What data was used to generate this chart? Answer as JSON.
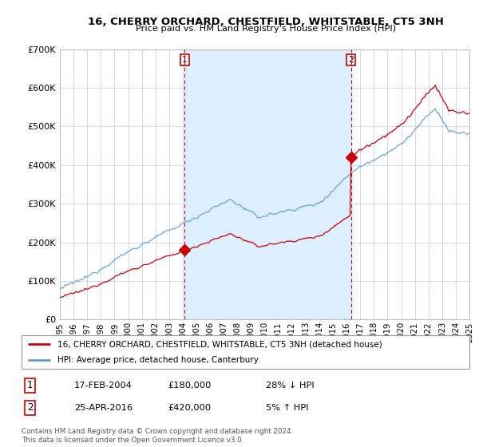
{
  "title": "16, CHERRY ORCHARD, CHESTFIELD, WHITSTABLE, CT5 3NH",
  "subtitle": "Price paid vs. HM Land Registry's House Price Index (HPI)",
  "legend_line1": "16, CHERRY ORCHARD, CHESTFIELD, WHITSTABLE, CT5 3NH (detached house)",
  "legend_line2": "HPI: Average price, detached house, Canterbury",
  "annotation1_label": "1",
  "annotation1_date": "17-FEB-2004",
  "annotation1_price": "£180,000",
  "annotation1_hpi": "28% ↓ HPI",
  "annotation2_label": "2",
  "annotation2_date": "25-APR-2016",
  "annotation2_price": "£420,000",
  "annotation2_hpi": "5% ↑ HPI",
  "footer": "Contains HM Land Registry data © Crown copyright and database right 2024.\nThis data is licensed under the Open Government Licence v3.0.",
  "sale1_year": 2004.13,
  "sale1_price": 180000,
  "sale2_year": 2016.32,
  "sale2_price": 420000,
  "hpi_color": "#5b9bd5",
  "hpi_fill_color": "#ddeeff",
  "price_color": "#cc0000",
  "background_color": "#ffffff",
  "grid_color": "#c8d4e8",
  "ylim": [
    0,
    700000
  ],
  "xlim_start": 1995,
  "xlim_end": 2025
}
